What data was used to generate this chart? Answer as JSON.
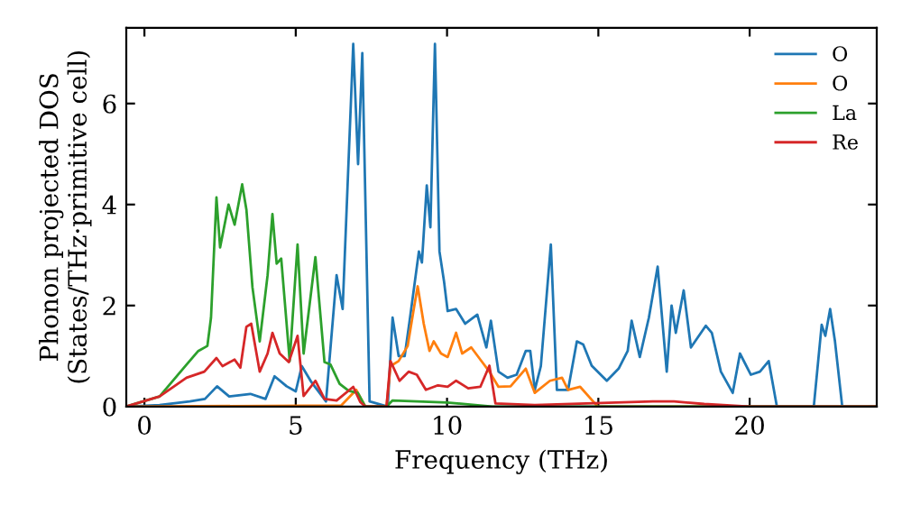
{
  "chart_data": {
    "type": "line",
    "xlabel": "Frequency (THz)",
    "ylabel": "Phonon projected DOS\n(States/THz·primitive cell)",
    "xlim": [
      -0.6,
      24.2
    ],
    "ylim": [
      0,
      7.5
    ],
    "xticks": [
      0,
      5,
      10,
      15,
      20
    ],
    "yticks": [
      0,
      2,
      4,
      6
    ],
    "grid": false,
    "legend": "top right",
    "marker": "none",
    "line_style": "solid",
    "series": [
      {
        "name": "O",
        "color": "#1f77b4",
        "x": [
          -0.6,
          0.5,
          1.5,
          2.0,
          2.4,
          2.8,
          3.5,
          4.0,
          4.3,
          4.7,
          5.0,
          5.2,
          5.5,
          6.0,
          6.35,
          6.55,
          6.9,
          7.06,
          7.2,
          7.44,
          8.04,
          8.2,
          8.4,
          8.6,
          8.75,
          9.07,
          9.17,
          9.33,
          9.45,
          9.6,
          9.75,
          9.9,
          10.02,
          10.3,
          10.6,
          11.0,
          11.3,
          11.45,
          11.7,
          12.0,
          12.3,
          12.6,
          12.75,
          12.9,
          13.1,
          13.43,
          13.63,
          14.0,
          14.29,
          14.5,
          14.78,
          15.28,
          15.67,
          15.97,
          16.1,
          16.37,
          16.67,
          16.96,
          17.26,
          17.42,
          17.56,
          17.82,
          18.06,
          18.55,
          18.75,
          19.05,
          19.44,
          19.68,
          20.04,
          20.34,
          20.63,
          20.9,
          22.12,
          22.38,
          22.5,
          22.66,
          22.82,
          23.06,
          24.2
        ],
        "values": [
          0,
          0.03,
          0.1,
          0.15,
          0.4,
          0.2,
          0.25,
          0.15,
          0.6,
          0.4,
          0.3,
          0.8,
          0.5,
          0.1,
          2.6,
          1.93,
          7.18,
          4.8,
          7.0,
          0.1,
          0,
          1.76,
          1.0,
          1.0,
          1.64,
          3.07,
          2.85,
          4.38,
          3.55,
          7.18,
          3.07,
          2.48,
          1.89,
          1.93,
          1.64,
          1.82,
          1.17,
          1.7,
          0.69,
          0.57,
          0.63,
          1.1,
          1.1,
          0.33,
          0.8,
          3.21,
          0.33,
          0.33,
          1.29,
          1.23,
          0.81,
          0.51,
          0.75,
          1.1,
          1.7,
          0.98,
          1.76,
          2.77,
          0.69,
          2.0,
          1.46,
          2.3,
          1.17,
          1.6,
          1.46,
          0.69,
          0.27,
          1.05,
          0.63,
          0.69,
          0.9,
          0,
          0,
          1.62,
          1.4,
          1.93,
          1.29,
          0,
          0
        ]
      },
      {
        "name": "O",
        "color": "#ff7f0e",
        "x": [
          -0.6,
          6.5,
          7.0,
          7.3,
          8.0,
          8.13,
          8.4,
          8.7,
          8.9,
          9.03,
          9.23,
          9.42,
          9.56,
          9.8,
          10.02,
          10.3,
          10.5,
          10.8,
          11.1,
          11.4,
          11.7,
          12.1,
          12.6,
          12.9,
          13.4,
          13.8,
          14.0,
          14.4,
          14.98,
          24.2
        ],
        "values": [
          0,
          0.02,
          0.33,
          0,
          0,
          0.8,
          0.9,
          1.2,
          1.93,
          2.38,
          1.64,
          1.1,
          1.29,
          1.05,
          0.98,
          1.46,
          1.05,
          1.17,
          0.93,
          0.69,
          0.39,
          0.4,
          0.75,
          0.27,
          0.51,
          0.57,
          0.33,
          0.39,
          0,
          0
        ]
      },
      {
        "name": "La",
        "color": "#2ca02c",
        "x": [
          -0.6,
          0.5,
          1.39,
          1.78,
          2.08,
          2.2,
          2.38,
          2.5,
          2.78,
          2.98,
          3.23,
          3.37,
          3.57,
          3.81,
          4.07,
          4.23,
          4.37,
          4.52,
          4.8,
          5.06,
          5.26,
          5.65,
          5.95,
          6.15,
          6.45,
          6.75,
          7.05,
          7.3,
          8.0,
          8.2,
          10.0,
          11.5,
          24.2
        ],
        "values": [
          0,
          0.2,
          0.83,
          1.1,
          1.2,
          1.76,
          4.14,
          3.15,
          4.0,
          3.6,
          4.4,
          3.9,
          2.36,
          1.29,
          2.6,
          3.81,
          2.83,
          2.93,
          0.9,
          3.21,
          1.05,
          2.96,
          0.88,
          0.83,
          0.45,
          0.31,
          0.27,
          0,
          0,
          0.12,
          0.08,
          0,
          0
        ]
      },
      {
        "name": "Re",
        "color": "#d62728",
        "x": [
          -0.6,
          0.5,
          1.39,
          1.98,
          2.38,
          2.58,
          2.98,
          3.17,
          3.37,
          3.53,
          3.81,
          4.07,
          4.23,
          4.47,
          4.77,
          5.06,
          5.26,
          5.65,
          5.95,
          6.35,
          6.9,
          7.13,
          7.3,
          8.0,
          8.13,
          8.43,
          8.73,
          9.0,
          9.3,
          9.7,
          10.02,
          10.3,
          10.7,
          11.1,
          11.4,
          11.6,
          12.9,
          16.8,
          17.5,
          18.5,
          20.0,
          24.2
        ],
        "values": [
          0,
          0.2,
          0.57,
          0.69,
          0.96,
          0.8,
          0.93,
          0.77,
          1.58,
          1.64,
          0.69,
          1.05,
          1.46,
          1.05,
          0.88,
          1.4,
          0.21,
          0.51,
          0.15,
          0.12,
          0.39,
          0.09,
          0,
          0,
          0.9,
          0.51,
          0.69,
          0.63,
          0.33,
          0.42,
          0.39,
          0.51,
          0.36,
          0.39,
          0.81,
          0.06,
          0.03,
          0.1,
          0.1,
          0.05,
          0,
          0
        ]
      }
    ]
  }
}
